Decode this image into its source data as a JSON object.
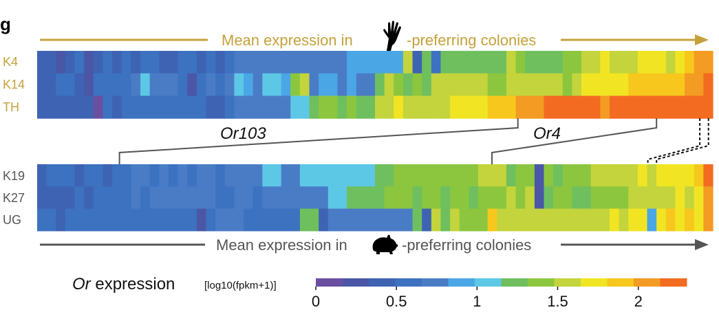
{
  "panel_label": "g",
  "colors": {
    "human_accent": "#C5A03B",
    "guinea_pig_accent": "#555555",
    "scale": [
      "#6A4FA0",
      "#4B57A6",
      "#3E63B3",
      "#3C72C0",
      "#4A7CC6",
      "#4BA6E6",
      "#5CC8E6",
      "#6FBF5E",
      "#8CC63F",
      "#C3D43C",
      "#F1E523",
      "#F7C71D",
      "#F39B22",
      "#F36B21"
    ]
  },
  "icons": {
    "human": "hand-icon",
    "guinea_pig": "guinea-pig-icon"
  },
  "chart_data": {
    "type": "heatmap",
    "top_block": {
      "title_prefix": "Mean expression in",
      "title_suffix": "-preferring colonies",
      "ordering": "ascending mean expression in human-preferring colonies",
      "rows": [
        "K4",
        "K14",
        "TH"
      ],
      "n_columns": 72,
      "values": {
        "K4": [
          0.35,
          0.45,
          0.3,
          0.45,
          0.5,
          0.3,
          0.45,
          0.55,
          0.45,
          0.5,
          0.35,
          0.55,
          0.55,
          0.45,
          0.35,
          0.55,
          0.5,
          0.45,
          0.55,
          0.45,
          0.65,
          0.8,
          0.8,
          0.8,
          0.8,
          0.8,
          0.8,
          0.8,
          0.8,
          0.8,
          0.8,
          0.8,
          0.8,
          0.85,
          0.85,
          0.85,
          0.85,
          0.85,
          0.85,
          1.5,
          0.35,
          1.3,
          0.5,
          1.2,
          1.3,
          1.3,
          1.3,
          1.3,
          1.3,
          1.3,
          1.55,
          1.45,
          1.2,
          1.15,
          1.15,
          1.2,
          1.4,
          1.45,
          1.5,
          1.6,
          1.65,
          1.5,
          1.6,
          1.55,
          1.7,
          1.75,
          1.8,
          1.5,
          1.7,
          1.95,
          2.0,
          2.1
        ],
        "K14": [
          0.35,
          0.45,
          0.55,
          0.55,
          0.4,
          0.3,
          0.55,
          0.6,
          0.55,
          0.55,
          0.8,
          1.0,
          0.8,
          0.8,
          0.7,
          0.6,
          0.25,
          0.65,
          0.8,
          0.6,
          0.75,
          1.0,
          0.95,
          0.75,
          1.0,
          1.0,
          0.9,
          1.45,
          1.5,
          0.8,
          0.85,
          0.85,
          0.8,
          0.85,
          0.8,
          0.8,
          1.25,
          1.5,
          1.45,
          1.25,
          1.35,
          1.3,
          1.5,
          1.6,
          1.55,
          1.5,
          1.55,
          1.5,
          1.4,
          1.45,
          1.5,
          1.5,
          1.6,
          1.55,
          1.6,
          1.55,
          1.45,
          1.6,
          1.65,
          1.7,
          1.75,
          1.7,
          1.8,
          1.85,
          1.9,
          1.9,
          1.95,
          1.85,
          1.95,
          2.0,
          2.05,
          2.25
        ],
        "TH": [
          0.4,
          0.45,
          0.35,
          0.4,
          0.45,
          0.4,
          0.1,
          0.55,
          0.4,
          0.55,
          0.5,
          0.55,
          0.6,
          0.5,
          0.55,
          0.6,
          0.5,
          0.6,
          0.45,
          0.45,
          0.6,
          0.8,
          0.8,
          0.8,
          0.8,
          0.8,
          0.75,
          1.0,
          1.0,
          1.2,
          1.45,
          1.45,
          1.3,
          1.45,
          1.3,
          1.3,
          1.5,
          1.6,
          1.65,
          1.5,
          1.55,
          1.6,
          1.55,
          1.6,
          1.7,
          1.75,
          1.65,
          1.8,
          1.85,
          1.9,
          1.95,
          2.0,
          2.05,
          2.1,
          2.2,
          2.25,
          2.15,
          2.25,
          2.3,
          2.3,
          2.1,
          2.25,
          2.3,
          2.25,
          2.2,
          2.3,
          2.15,
          2.2,
          2.25,
          2.3,
          2.3,
          2.3
        ]
      }
    },
    "bottom_block": {
      "title_prefix": "Mean expression in",
      "title_suffix": "-preferring colonies",
      "ordering": "ascending mean expression in guinea-pig-preferring colonies",
      "rows": [
        "K19",
        "K27",
        "UG"
      ],
      "n_columns": 72,
      "values": {
        "K19": [
          0.35,
          0.55,
          0.6,
          0.55,
          0.35,
          0.55,
          0.55,
          0.4,
          0.6,
          0.55,
          0.8,
          0.8,
          0.6,
          0.8,
          0.55,
          0.8,
          0.55,
          0.8,
          0.8,
          0.55,
          0.8,
          0.8,
          0.8,
          0.8,
          1.0,
          1.0,
          0.8,
          0.8,
          1.0,
          1.0,
          1.0,
          1.0,
          1.0,
          1.0,
          1.0,
          1.0,
          1.2,
          1.25,
          1.4,
          1.35,
          1.35,
          1.4,
          1.45,
          1.35,
          1.45,
          1.45,
          1.45,
          1.5,
          1.55,
          1.6,
          1.2,
          1.4,
          1.45,
          0.25,
          1.45,
          1.3,
          1.35,
          1.4,
          1.45,
          1.5,
          1.55,
          1.5,
          1.55,
          1.55,
          1.65,
          1.6,
          1.65,
          1.7,
          1.75,
          1.8,
          1.9,
          2.3
        ],
        "K27": [
          0.35,
          0.45,
          0.45,
          0.45,
          0.55,
          0.45,
          0.55,
          0.6,
          0.55,
          0.6,
          0.8,
          0.55,
          0.8,
          0.8,
          0.8,
          0.8,
          0.8,
          0.8,
          0.8,
          0.5,
          0.55,
          0.8,
          0.8,
          0.55,
          0.8,
          0.8,
          0.8,
          0.8,
          0.8,
          0.8,
          0.8,
          1.0,
          1.0,
          1.2,
          1.3,
          1.2,
          1.25,
          1.4,
          1.35,
          1.4,
          1.3,
          1.45,
          1.4,
          1.3,
          1.35,
          1.4,
          1.3,
          1.45,
          1.45,
          1.4,
          1.5,
          1.45,
          1.5,
          0.2,
          1.3,
          1.4,
          1.35,
          1.3,
          1.3,
          1.4,
          1.45,
          1.4,
          1.45,
          1.5,
          1.55,
          1.5,
          1.55,
          1.6,
          1.65,
          1.6,
          1.75,
          2.1
        ],
        "UG": [
          0.55,
          0.6,
          0.4,
          0.55,
          0.6,
          0.55,
          0.6,
          0.55,
          0.6,
          0.55,
          0.6,
          0.55,
          0.6,
          0.55,
          0.6,
          0.55,
          0.55,
          0.3,
          0.55,
          0.8,
          0.8,
          0.8,
          0.55,
          0.6,
          0.55,
          0.6,
          0.55,
          0.55,
          1.3,
          1.3,
          0.45,
          0.8,
          0.8,
          0.8,
          0.8,
          0.8,
          0.8,
          0.8,
          0.8,
          0.8,
          1.3,
          0.4,
          1.55,
          1.3,
          1.5,
          1.35,
          1.4,
          1.45,
          1.9,
          1.5,
          1.5,
          1.55,
          1.55,
          1.55,
          1.55,
          1.6,
          1.55,
          1.6,
          1.6,
          1.55,
          1.6,
          1.65,
          1.6,
          1.7,
          1.75,
          0.85,
          1.8,
          1.85,
          1.8,
          1.85,
          1.8,
          2.1
        ]
      }
    },
    "annotations": [
      {
        "label": "Or103",
        "top_column": 55,
        "bottom_column": 9,
        "style": "solid"
      },
      {
        "label": "Or4",
        "top_column": 71,
        "bottom_column": 52,
        "style": "solid"
      },
      {
        "label": "",
        "top_column": 76,
        "bottom_column": 70,
        "style": "dashed"
      },
      {
        "label": "",
        "top_column": 77,
        "bottom_column": 71,
        "style": "dashed"
      }
    ],
    "colorbar": {
      "title_italic": "Or",
      "title_main": " expression",
      "title_units": "[log10(fpkm+1)]",
      "range": [
        0,
        2.3
      ],
      "ticks": [
        0,
        0.5,
        1,
        1.5,
        2
      ],
      "tick_labels": [
        "0",
        "0.5",
        "1",
        "1.5",
        "2"
      ]
    }
  }
}
